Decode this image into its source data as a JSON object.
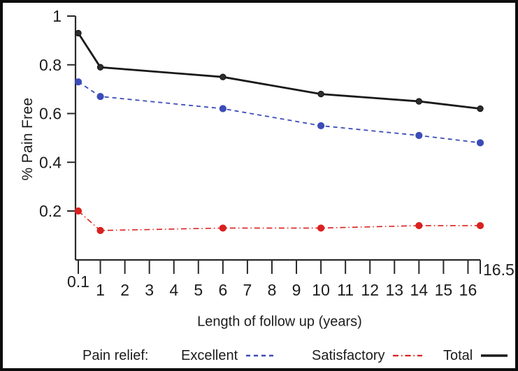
{
  "legend": {
    "title": "Pain relief:"
  },
  "chart_data": {
    "type": "line",
    "title": "",
    "xlabel": "Length of follow up (years)",
    "ylabel": "% Pain Free",
    "xlim": [
      0.1,
      16.5
    ],
    "ylim": [
      0,
      1
    ],
    "grid": false,
    "legend_position": "bottom",
    "x_ticks": [
      0.1,
      1,
      2,
      3,
      4,
      5,
      6,
      7,
      8,
      9,
      10,
      11,
      12,
      13,
      14,
      15,
      16
    ],
    "x_tick_labels": [
      "0.1",
      "1",
      "2",
      "3",
      "4",
      "5",
      "6",
      "7",
      "8",
      "9",
      "10",
      "11",
      "12",
      "13",
      "14",
      "15",
      "16"
    ],
    "x_end_label": "16.5",
    "y_ticks": [
      1,
      0.8,
      0.6,
      0.4,
      0.2
    ],
    "y_tick_labels": [
      "1",
      "0.8",
      "0.6",
      "0.4",
      "0.2"
    ],
    "x": [
      0.1,
      1,
      6,
      10,
      14,
      16.5
    ],
    "series": [
      {
        "name": "Excellent",
        "color": "#3b4cb8",
        "line_style": "dashed",
        "values": [
          0.73,
          0.67,
          0.62,
          0.55,
          0.51,
          0.48
        ]
      },
      {
        "name": "Satisfactory",
        "color": "#d9211f",
        "line_style": "dashdot",
        "values": [
          0.2,
          0.12,
          0.13,
          0.13,
          0.14,
          0.14
        ]
      },
      {
        "name": "Total",
        "color": "#1a1a1a",
        "line_style": "solid",
        "values": [
          0.93,
          0.79,
          0.75,
          0.68,
          0.65,
          0.62
        ]
      }
    ],
    "axis_color": "#2a2a2a"
  }
}
